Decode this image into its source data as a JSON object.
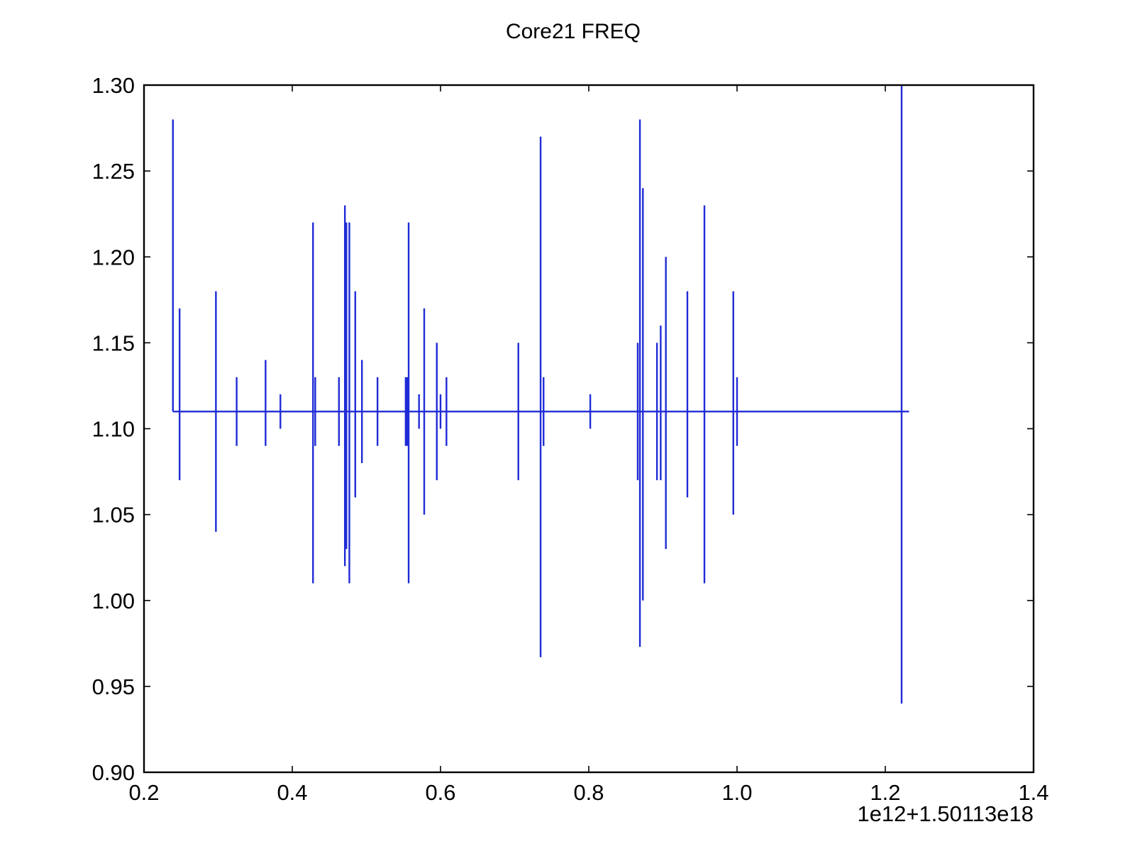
{
  "chart_data": {
    "type": "line",
    "title": "Core21 FREQ",
    "xlabel": "",
    "ylabel": "",
    "x_offset_label": "1e12+1.50113e18",
    "xlim": [
      0.2,
      1.4
    ],
    "ylim": [
      0.9,
      1.3
    ],
    "xticks": [
      0.2,
      0.4,
      0.6,
      0.8,
      1.0,
      1.2,
      1.4
    ],
    "xtick_labels": [
      "0.2",
      "0.4",
      "0.6",
      "0.8",
      "1.0",
      "1.2",
      "1.4"
    ],
    "yticks": [
      0.9,
      0.95,
      1.0,
      1.05,
      1.1,
      1.15,
      1.2,
      1.25,
      1.3
    ],
    "ytick_labels": [
      "0.90",
      "0.95",
      "1.00",
      "1.05",
      "1.10",
      "1.15",
      "1.20",
      "1.25",
      "1.30"
    ],
    "grid": false,
    "legend": "none",
    "line_color": "#1f2bd6",
    "baseline": 1.11,
    "x_end": 1.232,
    "series": [
      {
        "values": [
          {
            "x": 0.239,
            "lo": 1.11,
            "hi": 1.28
          },
          {
            "x": 0.248,
            "lo": 1.07,
            "hi": 1.17
          },
          {
            "x": 0.297,
            "lo": 1.04,
            "hi": 1.18
          },
          {
            "x": 0.325,
            "lo": 1.09,
            "hi": 1.13
          },
          {
            "x": 0.364,
            "lo": 1.09,
            "hi": 1.14
          },
          {
            "x": 0.384,
            "lo": 1.1,
            "hi": 1.12
          },
          {
            "x": 0.428,
            "lo": 1.01,
            "hi": 1.22
          },
          {
            "x": 0.431,
            "lo": 1.09,
            "hi": 1.13
          },
          {
            "x": 0.463,
            "lo": 1.09,
            "hi": 1.13
          },
          {
            "x": 0.471,
            "lo": 1.02,
            "hi": 1.23
          },
          {
            "x": 0.473,
            "lo": 1.03,
            "hi": 1.22
          },
          {
            "x": 0.477,
            "lo": 1.01,
            "hi": 1.22
          },
          {
            "x": 0.485,
            "lo": 1.06,
            "hi": 1.18
          },
          {
            "x": 0.494,
            "lo": 1.08,
            "hi": 1.14
          },
          {
            "x": 0.515,
            "lo": 1.09,
            "hi": 1.13
          },
          {
            "x": 0.553,
            "lo": 1.09,
            "hi": 1.13
          },
          {
            "x": 0.555,
            "lo": 1.09,
            "hi": 1.13
          },
          {
            "x": 0.557,
            "lo": 1.01,
            "hi": 1.22
          },
          {
            "x": 0.571,
            "lo": 1.1,
            "hi": 1.12
          },
          {
            "x": 0.578,
            "lo": 1.05,
            "hi": 1.17
          },
          {
            "x": 0.595,
            "lo": 1.07,
            "hi": 1.15
          },
          {
            "x": 0.6,
            "lo": 1.1,
            "hi": 1.12
          },
          {
            "x": 0.608,
            "lo": 1.09,
            "hi": 1.13
          },
          {
            "x": 0.705,
            "lo": 1.07,
            "hi": 1.15
          },
          {
            "x": 0.735,
            "lo": 0.967,
            "hi": 1.27
          },
          {
            "x": 0.739,
            "lo": 1.09,
            "hi": 1.13
          },
          {
            "x": 0.802,
            "lo": 1.1,
            "hi": 1.12
          },
          {
            "x": 0.866,
            "lo": 1.07,
            "hi": 1.15
          },
          {
            "x": 0.869,
            "lo": 0.973,
            "hi": 1.28
          },
          {
            "x": 0.873,
            "lo": 1.0,
            "hi": 1.24
          },
          {
            "x": 0.892,
            "lo": 1.07,
            "hi": 1.15
          },
          {
            "x": 0.897,
            "lo": 1.07,
            "hi": 1.16
          },
          {
            "x": 0.904,
            "lo": 1.03,
            "hi": 1.2
          },
          {
            "x": 0.933,
            "lo": 1.06,
            "hi": 1.18
          },
          {
            "x": 0.956,
            "lo": 1.01,
            "hi": 1.23
          },
          {
            "x": 0.995,
            "lo": 1.05,
            "hi": 1.18
          },
          {
            "x": 1.0,
            "lo": 1.09,
            "hi": 1.13
          },
          {
            "x": 1.222,
            "lo": 0.94,
            "hi": 1.3
          }
        ]
      }
    ]
  }
}
